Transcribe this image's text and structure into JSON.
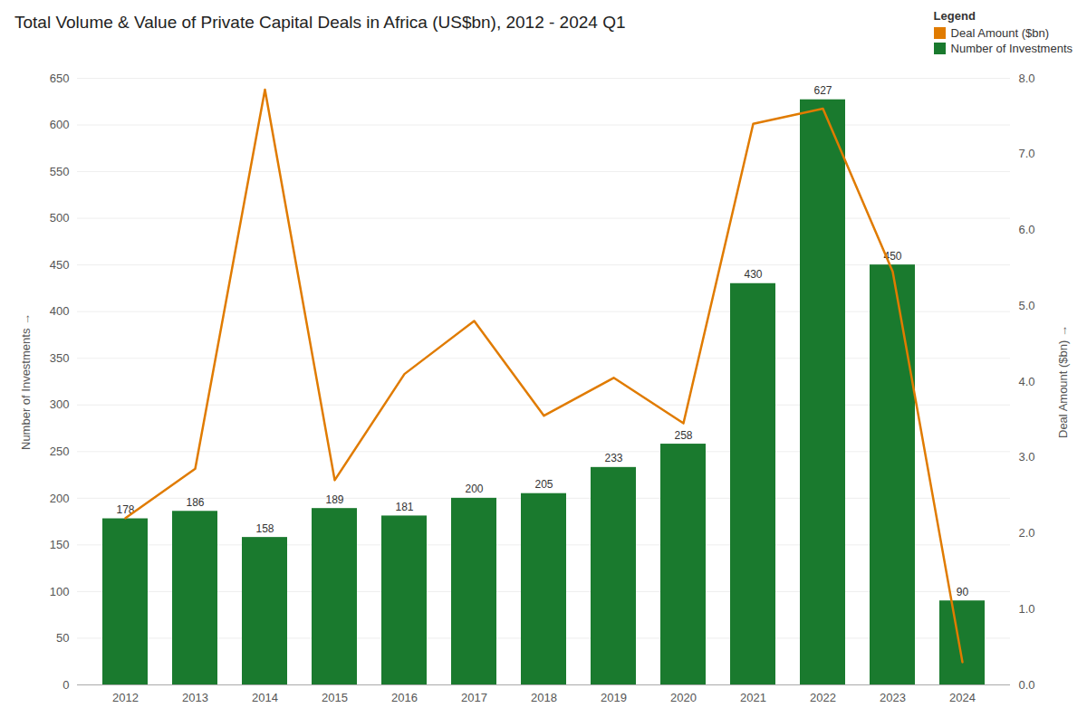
{
  "chart_data": {
    "type": "bar",
    "title": "Total Volume & Value of Private Capital Deals in Africa (US$bn), 2012 - 2024 Q1",
    "categories": [
      "2012",
      "2013",
      "2014",
      "2015",
      "2016",
      "2017",
      "2018",
      "2019",
      "2020",
      "2021",
      "2022",
      "2023",
      "2024"
    ],
    "series": [
      {
        "name": "Deal Amount ($bn)",
        "type": "line",
        "axis": "y2",
        "color": "#e07b00",
        "values": [
          2.2,
          2.85,
          7.85,
          2.7,
          4.1,
          4.8,
          3.55,
          4.05,
          3.45,
          7.4,
          7.6,
          5.45,
          0.3
        ]
      },
      {
        "name": "Number of Investments",
        "type": "bar",
        "color": "#1a7a2e",
        "data_labels": true,
        "values": [
          178,
          186,
          158,
          189,
          181,
          200,
          205,
          233,
          258,
          430,
          627,
          450,
          90
        ]
      }
    ],
    "ylabel": "Number of Investments",
    "y2label": "Deal Amount ($bn)",
    "ylim": [
      0,
      650
    ],
    "yticks": [
      0,
      50,
      100,
      150,
      200,
      250,
      300,
      350,
      400,
      450,
      500,
      550,
      600,
      650
    ],
    "y2lim": [
      0,
      8.0
    ],
    "y2ticks": [
      {
        "value": 0,
        "label": "0.0"
      },
      {
        "value": 1,
        "label": "1.0"
      },
      {
        "value": 2,
        "label": "2.0"
      },
      {
        "value": 3,
        "label": "3.0"
      },
      {
        "value": 4,
        "label": "4.0"
      },
      {
        "value": 5,
        "label": "5.0"
      },
      {
        "value": 6,
        "label": "6.0"
      },
      {
        "value": 7,
        "label": "7.0"
      },
      {
        "value": 8,
        "label": "8.0"
      }
    ],
    "grid": true,
    "legend": "upper right",
    "legend_title": "Legend"
  }
}
